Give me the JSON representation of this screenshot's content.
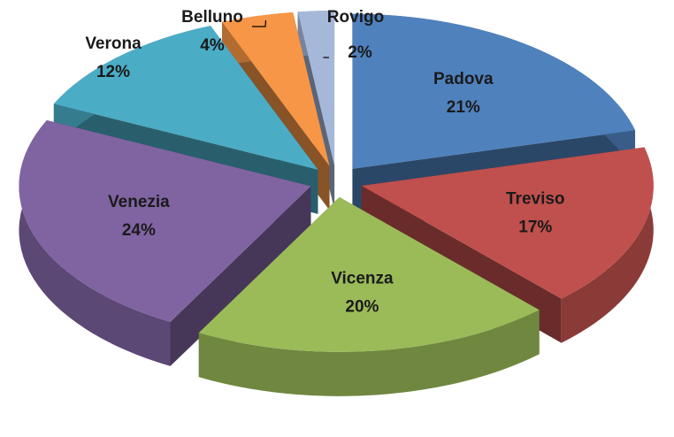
{
  "chart_data": {
    "type": "pie",
    "categories": [
      "Padova",
      "Treviso",
      "Vicenza",
      "Venezia",
      "Verona",
      "Belluno",
      "Rovigo"
    ],
    "values": [
      21,
      17,
      20,
      24,
      12,
      4,
      2
    ],
    "value_labels": [
      "21%",
      "17%",
      "20%",
      "24%",
      "12%",
      "4%",
      "2%"
    ],
    "colors": [
      "#4f81bd",
      "#c0504d",
      "#9bbb59",
      "#8064a2",
      "#4bacc6",
      "#f79646",
      "#a5b8da"
    ]
  }
}
